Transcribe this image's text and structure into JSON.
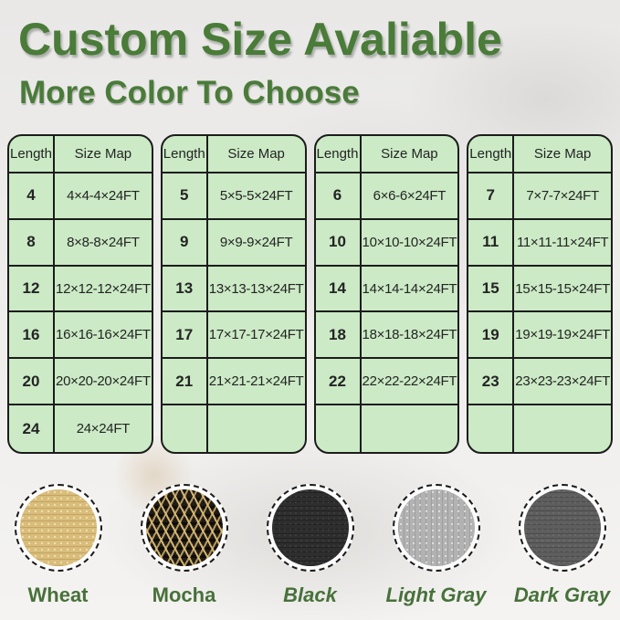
{
  "header": {
    "title": "Custom Size Avaliable",
    "subtitle": "More Color To Choose"
  },
  "colors": {
    "heading_green": "#4a7b39",
    "label_green": "#47713a",
    "table_fill_green": "#cbeac5",
    "table_border": "#1c1c1c"
  },
  "tables": [
    {
      "headers": [
        "Length",
        "Size Map"
      ],
      "rows": [
        [
          "4",
          "4×4-4×24FT"
        ],
        [
          "8",
          "8×8-8×24FT"
        ],
        [
          "12",
          "12×12-12×24FT"
        ],
        [
          "16",
          "16×16-16×24FT"
        ],
        [
          "20",
          "20×20-20×24FT"
        ],
        [
          "24",
          "24×24FT"
        ]
      ]
    },
    {
      "headers": [
        "Length",
        "Size Map"
      ],
      "rows": [
        [
          "5",
          "5×5-5×24FT"
        ],
        [
          "9",
          "9×9-9×24FT"
        ],
        [
          "13",
          "13×13-13×24FT"
        ],
        [
          "17",
          "17×17-17×24FT"
        ],
        [
          "21",
          "21×21-21×24FT"
        ],
        [
          "",
          ""
        ]
      ]
    },
    {
      "headers": [
        "Length",
        "Size Map"
      ],
      "rows": [
        [
          "6",
          "6×6-6×24FT"
        ],
        [
          "10",
          "10×10-10×24FT"
        ],
        [
          "14",
          "14×14-14×24FT"
        ],
        [
          "18",
          "18×18-18×24FT"
        ],
        [
          "22",
          "22×22-22×24FT"
        ],
        [
          "",
          ""
        ]
      ]
    },
    {
      "headers": [
        "Length",
        "Size Map"
      ],
      "rows": [
        [
          "7",
          "7×7-7×24FT"
        ],
        [
          "11",
          "11×11-11×24FT"
        ],
        [
          "15",
          "15×15-15×24FT"
        ],
        [
          "19",
          "19×19-19×24FT"
        ],
        [
          "23",
          "23×23-23×24FT"
        ],
        [
          "",
          ""
        ]
      ]
    }
  ],
  "swatches": [
    {
      "key": "wheat",
      "label": "Wheat",
      "color": "#d9bd7c",
      "italic": false
    },
    {
      "key": "mocha",
      "label": "Mocha",
      "color": "#211c14",
      "italic": false
    },
    {
      "key": "black",
      "label": "Black",
      "color": "#2e2e2e",
      "italic": true
    },
    {
      "key": "lightgray",
      "label": "Light Gray",
      "color": "#b2b2b2",
      "italic": true
    },
    {
      "key": "darkgray",
      "label": "Dark Gray",
      "color": "#5e5e5e",
      "italic": true
    }
  ]
}
